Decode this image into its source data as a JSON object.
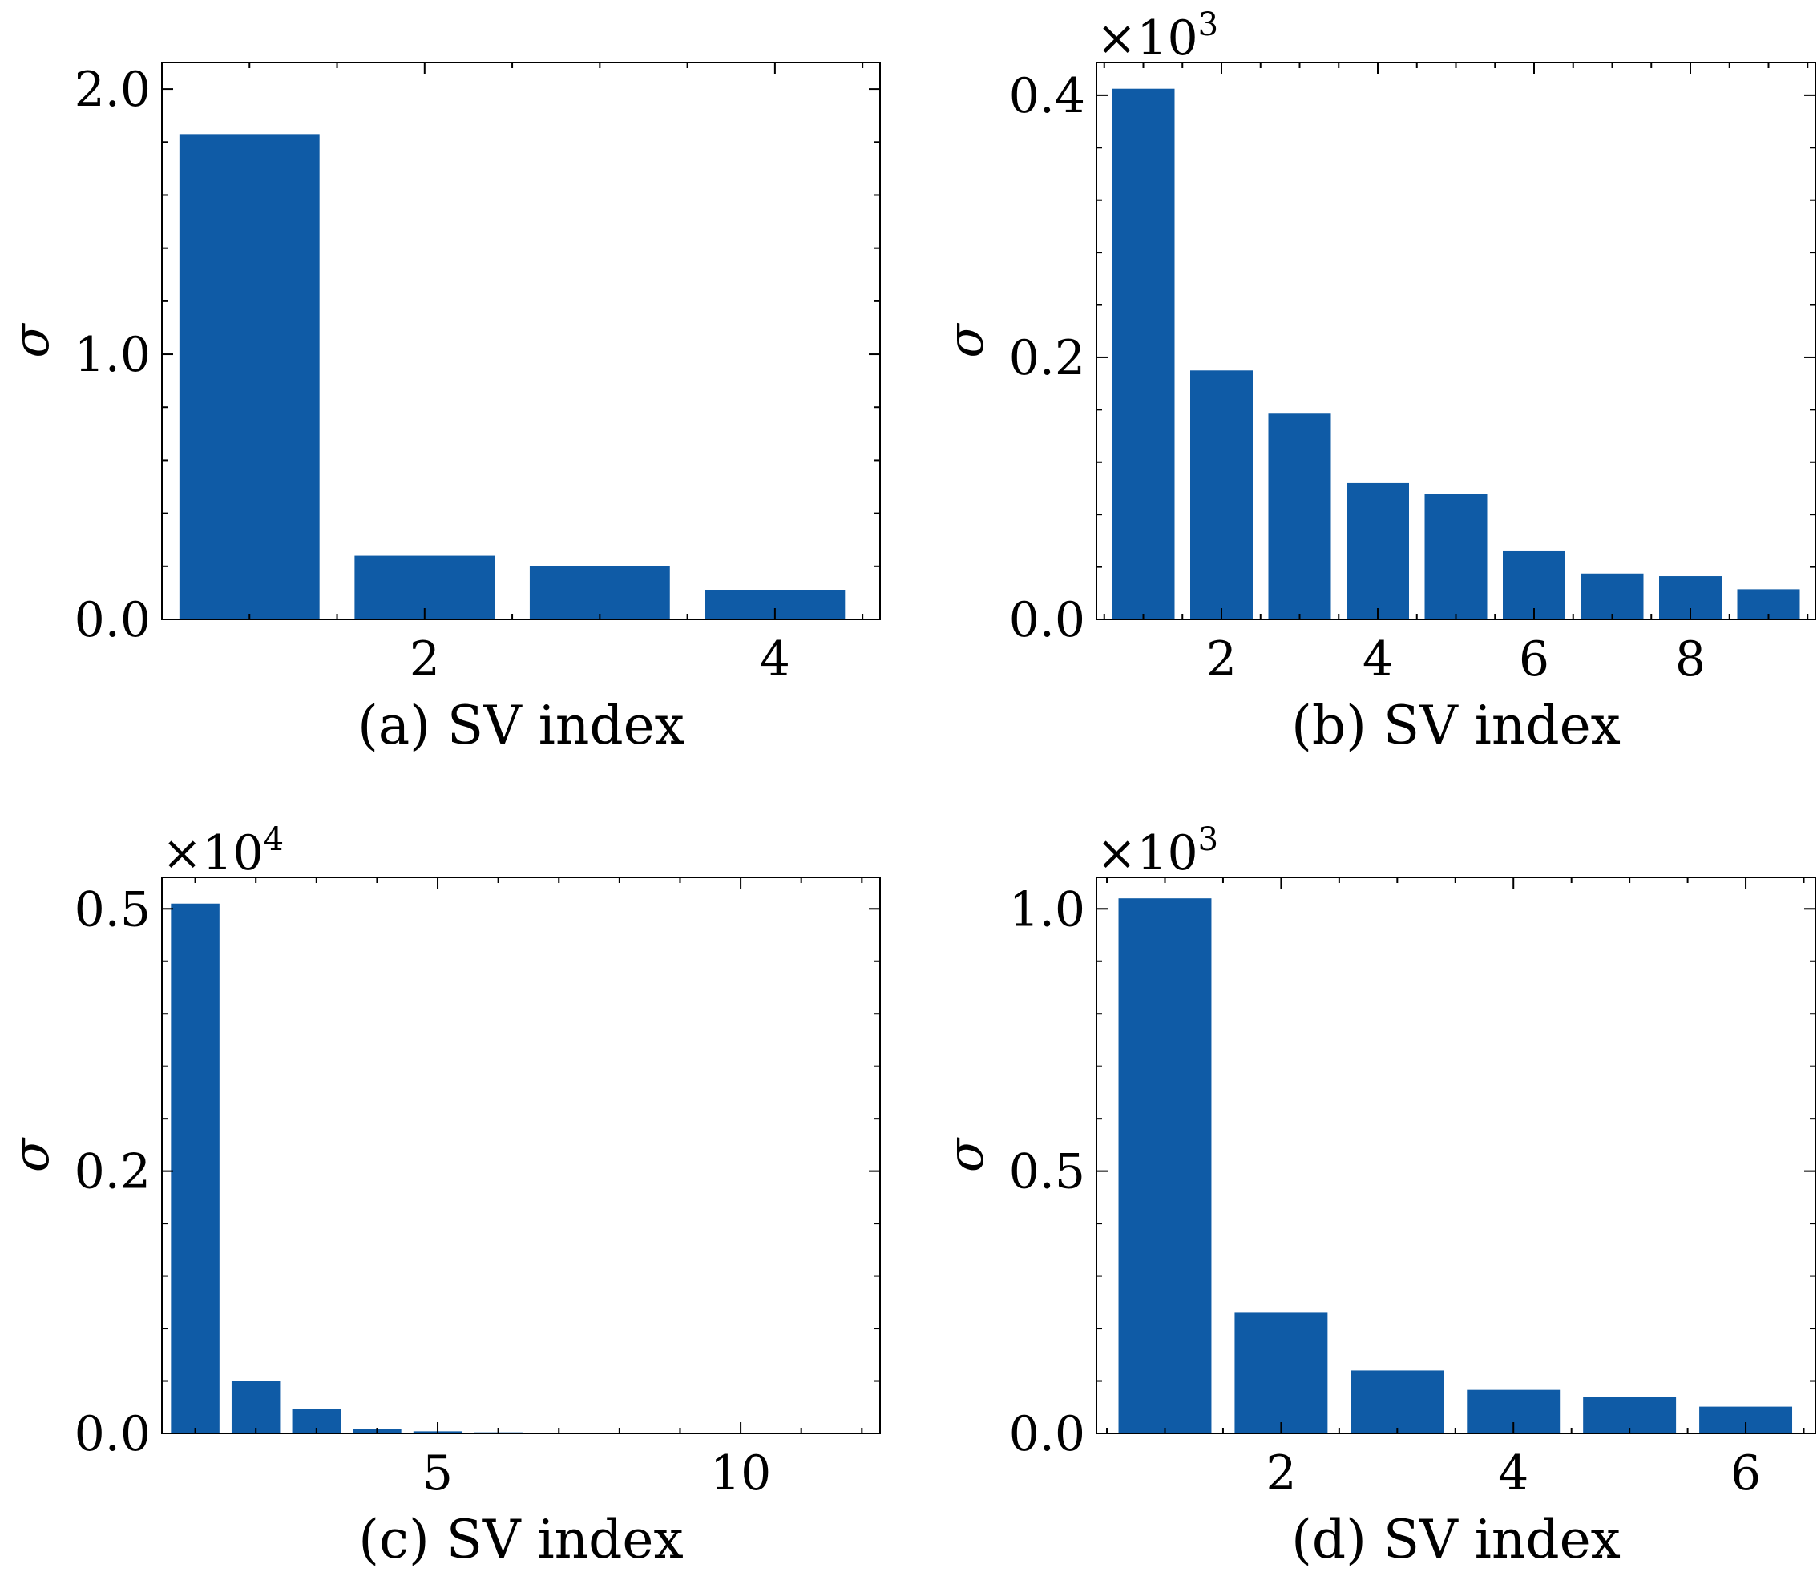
{
  "colors": {
    "bar": "#0f5ba6",
    "axis": "#000000",
    "background": "#ffffff"
  },
  "chart_data": [
    {
      "type": "bar",
      "xlabel": "(a) SV index",
      "ylabel": "σ",
      "multiplier": {
        "base": "",
        "exp": ""
      },
      "x": [
        1,
        2,
        3,
        4
      ],
      "values": [
        1.83,
        0.24,
        0.2,
        0.11
      ],
      "xlim": [
        0.5,
        4.6
      ],
      "ylim": [
        0,
        2.1
      ],
      "xticks": [
        2,
        4
      ],
      "xtick_labels": [
        "2",
        "4"
      ],
      "yticks": [
        0,
        1,
        2
      ],
      "ytick_labels": [
        "0.0",
        "1.0",
        "2.0"
      ]
    },
    {
      "type": "bar",
      "xlabel": "(b) SV index",
      "ylabel": "σ",
      "multiplier": {
        "base": "×10",
        "exp": "3"
      },
      "x": [
        1,
        2,
        3,
        4,
        5,
        6,
        7,
        8,
        9
      ],
      "values": [
        0.405,
        0.19,
        0.157,
        0.104,
        0.096,
        0.052,
        0.035,
        0.033,
        0.023
      ],
      "xlim": [
        0.4,
        9.6
      ],
      "ylim": [
        0,
        0.425
      ],
      "xticks": [
        2,
        4,
        6,
        8
      ],
      "xtick_labels": [
        "2",
        "4",
        "6",
        "8"
      ],
      "yticks": [
        0,
        0.2,
        0.4
      ],
      "ytick_labels": [
        "0.0",
        "0.2",
        "0.4"
      ]
    },
    {
      "type": "bar",
      "xlabel": "(c) SV index",
      "ylabel": "σ",
      "multiplier": {
        "base": "×10",
        "exp": "4"
      },
      "x": [
        1,
        2,
        3,
        4,
        5,
        6,
        7,
        8,
        9,
        10,
        11
      ],
      "values": [
        0.505,
        0.05,
        0.023,
        0.004,
        0.002,
        0.001,
        0.0004,
        0.0002,
        0.0001,
        0.0001,
        0.0001
      ],
      "xlim": [
        0.45,
        12.3
      ],
      "ylim": [
        0,
        0.53
      ],
      "xticks": [
        5,
        10
      ],
      "xtick_labels": [
        "5",
        "10"
      ],
      "yticks": [
        0,
        0.25,
        0.5
      ],
      "ytick_labels": [
        "0.0",
        "0.2",
        "0.5"
      ]
    },
    {
      "type": "bar",
      "xlabel": "(d) SV index",
      "ylabel": "σ",
      "multiplier": {
        "base": "×10",
        "exp": "3"
      },
      "x": [
        1,
        2,
        3,
        4,
        5,
        6
      ],
      "values": [
        1.02,
        0.23,
        0.12,
        0.083,
        0.07,
        0.051
      ],
      "xlim": [
        0.41,
        6.6
      ],
      "ylim": [
        0,
        1.06
      ],
      "xticks": [
        2,
        4,
        6
      ],
      "xtick_labels": [
        "2",
        "4",
        "6"
      ],
      "yticks": [
        0,
        0.5,
        1.0
      ],
      "ytick_labels": [
        "0.0",
        "0.5",
        "1.0"
      ]
    }
  ]
}
